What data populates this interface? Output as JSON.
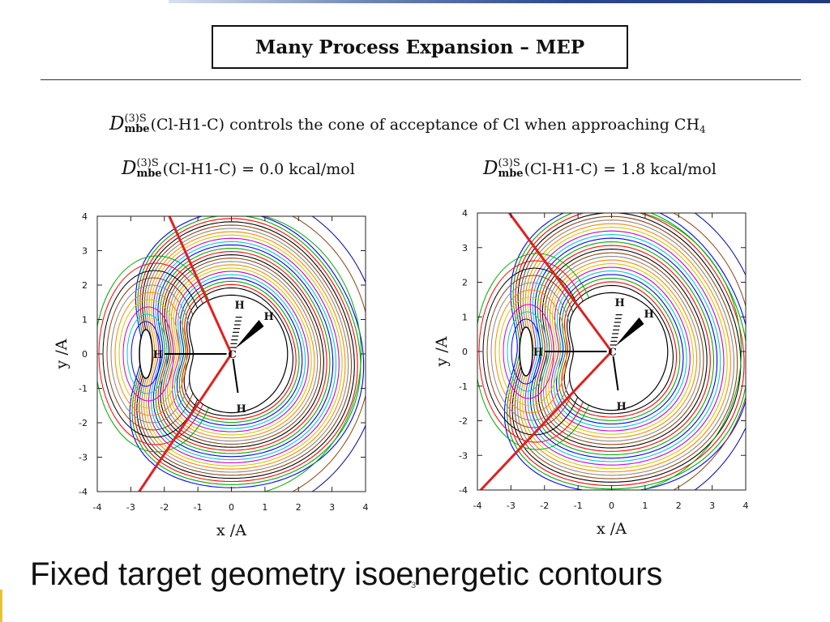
{
  "slide": {
    "title": "Many Process Expansion – MEP",
    "statement": {
      "d_symbol": "D",
      "sup": "(3)S",
      "sub": "mbe",
      "text": "(Cl-H1-C) controls the cone of acceptance of Cl when approaching CH",
      "sub_tail": "4"
    },
    "footer": "Fixed target geometry isoenergetic contours",
    "page_number": "3"
  },
  "panels": [
    {
      "caption": {
        "d_symbol": "D",
        "sup": "(3)S",
        "sub": "mbe",
        "text": "(Cl-H1-C) = 0.0 kcal/mol"
      },
      "xlabel": "x /A",
      "ylabel": "y /A",
      "xticks": [
        "-4",
        "-3",
        "-2",
        "-1",
        "0",
        "1",
        "2",
        "3",
        "4"
      ],
      "yticks": [
        "4",
        "3",
        "2",
        "1",
        "0",
        "-1",
        "-2",
        "-3",
        "-4"
      ],
      "atoms": {
        "c": "C",
        "h_left": "H",
        "h_top": "H",
        "h_wedge": "H",
        "h_bottom": "H"
      }
    },
    {
      "caption": {
        "d_symbol": "D",
        "sup": "(3)S",
        "sub": "mbe",
        "text": "(Cl-H1-C) = 1.8 kcal/mol"
      },
      "xlabel": "x /A",
      "ylabel": "y /A",
      "xticks": [
        "-4",
        "-3",
        "-2",
        "-1",
        "0",
        "1",
        "2",
        "3",
        "4"
      ],
      "yticks": [
        "4",
        "3",
        "2",
        "1",
        "0",
        "-1",
        "-2",
        "-3",
        "-4"
      ],
      "atoms": {
        "c": "C",
        "h_left": "H",
        "h_top": "H",
        "h_wedge": "H",
        "h_bottom": "H"
      }
    }
  ],
  "chart_data": [
    {
      "type": "contour",
      "xlim": [
        -4,
        4
      ],
      "ylim": [
        -4,
        4
      ],
      "xlabel": "x /A",
      "ylabel": "y /A",
      "cone_lines": [
        {
          "x1": -1.85,
          "y1": 4,
          "x2": 0,
          "y2": 0
        },
        {
          "x1": 0,
          "y1": 0,
          "x2": -2.75,
          "y2": -4
        }
      ],
      "contour_colors": [
        "#000000",
        "#ff0000",
        "#00aa00",
        "#0000ff",
        "#00cccc",
        "#cc00cc",
        "#cccc00",
        "#ff8800",
        "#888888",
        "#8b4513"
      ]
    },
    {
      "type": "contour",
      "xlim": [
        -4,
        4
      ],
      "ylim": [
        -4,
        4
      ],
      "xlabel": "x /A",
      "ylabel": "y /A",
      "cone_lines": [
        {
          "x1": -3.05,
          "y1": 4,
          "x2": 0,
          "y2": 0
        },
        {
          "x1": 0,
          "y1": 0,
          "x2": -3.9,
          "y2": -4
        }
      ],
      "contour_colors": [
        "#000000",
        "#ff0000",
        "#00aa00",
        "#0000ff",
        "#00cccc",
        "#cc00cc",
        "#cccc00",
        "#ff8800",
        "#888888",
        "#8b4513"
      ]
    }
  ]
}
